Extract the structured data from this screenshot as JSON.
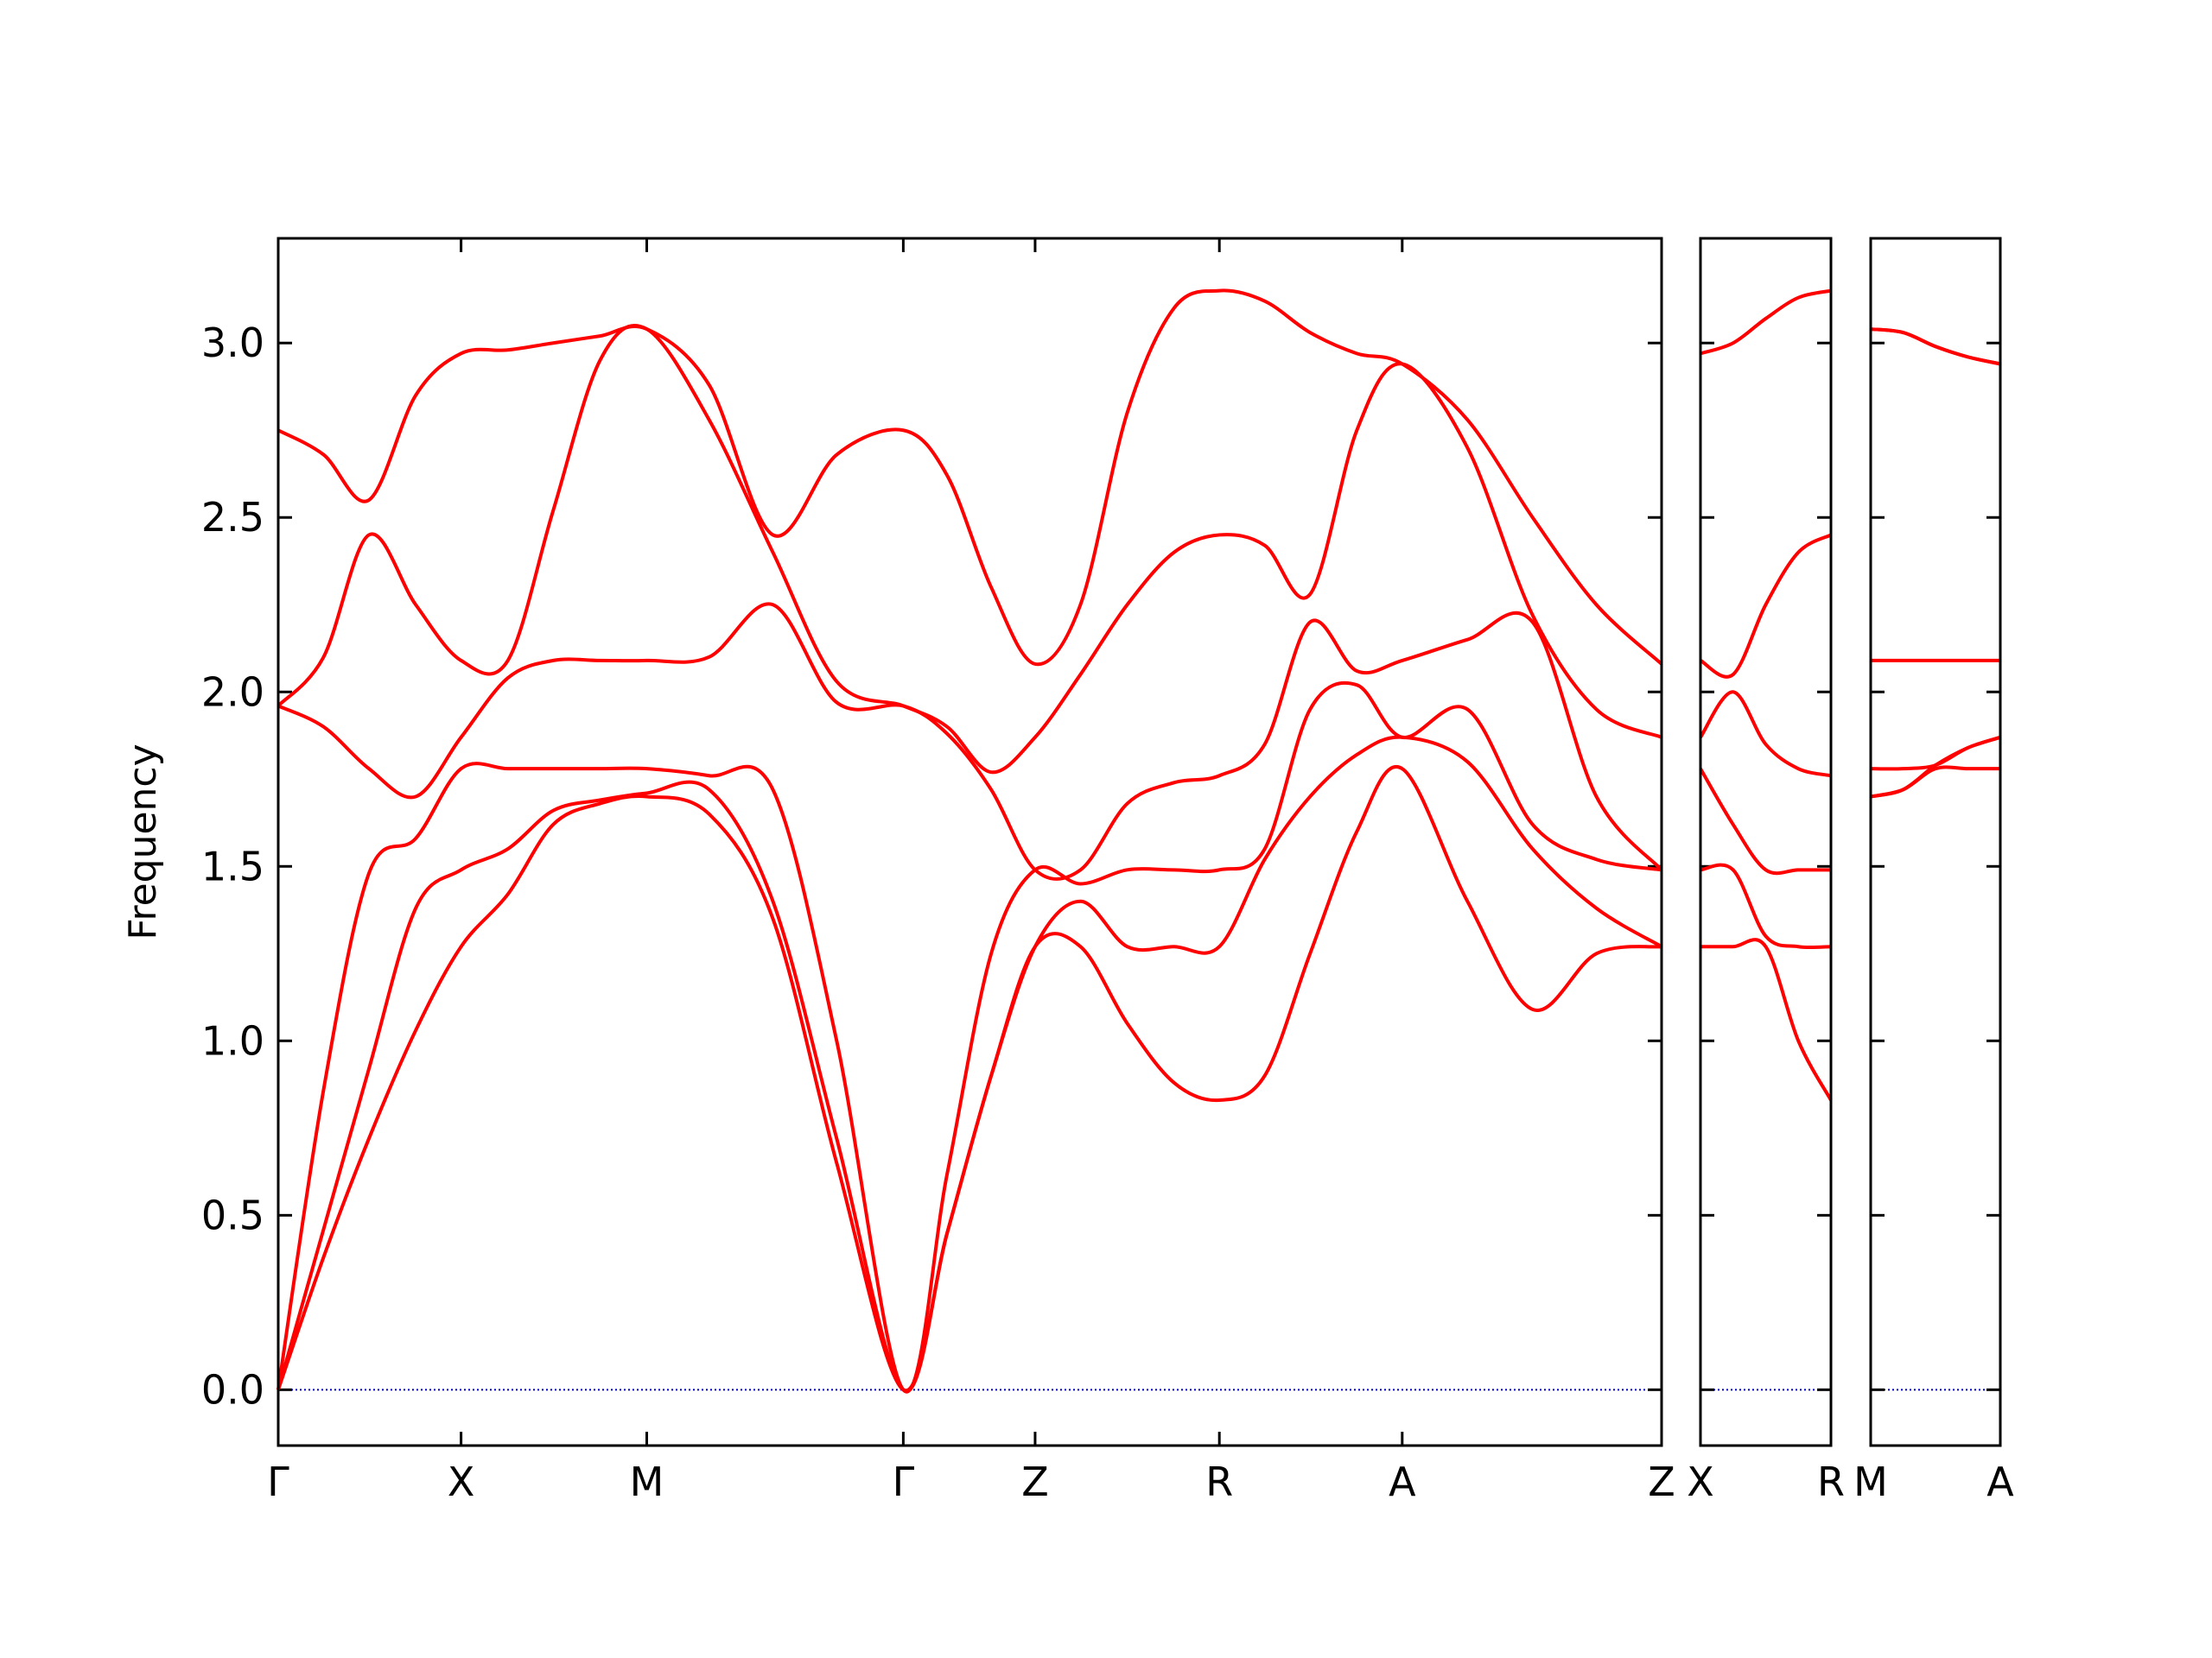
{
  "chart_data": [
    {
      "type": "line",
      "ylabel": "Frequency",
      "x": [
        0,
        0.32,
        0.64,
        0.97,
        1.29,
        1.62,
        1.94,
        2.27,
        2.6,
        3.04,
        3.49,
        3.94,
        4.41,
        4.72,
        5.03,
        5.34,
        5.66,
        5.99,
        6.32,
        6.64,
        6.96,
        7.28,
        7.61,
        7.93,
        8.39,
        8.85,
        9.3,
        9.76
      ],
      "xlim": [
        0,
        9.76
      ],
      "xticks": [
        {
          "value": 0,
          "label": "Γ"
        },
        {
          "value": 1.29,
          "label": "X"
        },
        {
          "value": 2.6,
          "label": "M"
        },
        {
          "value": 4.41,
          "label": "Γ"
        },
        {
          "value": 5.34,
          "label": "Z"
        },
        {
          "value": 6.64,
          "label": "R"
        },
        {
          "value": 7.93,
          "label": "A"
        },
        {
          "value": 9.76,
          "label": "Z"
        }
      ],
      "ylim": [
        -0.16,
        3.3
      ],
      "yticks": [
        {
          "value": 0,
          "label": "0.0"
        },
        {
          "value": 0.5,
          "label": "0.5"
        },
        {
          "value": 1,
          "label": "1.0"
        },
        {
          "value": 1.5,
          "label": "1.5"
        },
        {
          "value": 2,
          "label": "2.0"
        },
        {
          "value": 2.5,
          "label": "2.5"
        },
        {
          "value": 3,
          "label": "3.0"
        }
      ],
      "zero_line_color": "#0000cc",
      "series": [
        {
          "color": "#ff0000",
          "values": [
            0,
            0.38,
            0.72,
            1.03,
            1.27,
            1.42,
            1.62,
            1.68,
            1.7,
            1.65,
            1.35,
            0.65,
            0,
            0.45,
            0.9,
            1.27,
            1.27,
            1.05,
            0.88,
            0.83,
            0.9,
            1.25,
            1.6,
            1.78,
            1.4,
            1.09,
            1.25,
            1.27
          ]
        },
        {
          "color": "#ff0000",
          "values": [
            0,
            0.46,
            0.92,
            1.38,
            1.49,
            1.55,
            1.66,
            1.69,
            1.71,
            1.72,
            1.4,
            0.72,
            0,
            0.45,
            0.9,
            1.27,
            1.4,
            1.27,
            1.27,
            1.27,
            1.52,
            1.7,
            1.82,
            1.87,
            1.8,
            1.55,
            1.38,
            1.27
          ]
        },
        {
          "color": "#ff0000",
          "values": [
            0,
            0.86,
            1.48,
            1.58,
            1.78,
            1.78,
            1.78,
            1.78,
            1.78,
            1.76,
            1.72,
            1.0,
            0,
            0.62,
            1.25,
            1.49,
            1.45,
            1.49,
            1.49,
            1.49,
            1.55,
            1.95,
            2.02,
            1.87,
            1.95,
            1.62,
            1.52,
            1.49
          ]
        },
        {
          "color": "#ff0000",
          "values": [
            1.96,
            1.9,
            1.78,
            1.7,
            1.87,
            2.04,
            2.09,
            2.09,
            2.09,
            2.1,
            2.25,
            1.97,
            1.96,
            1.88,
            1.72,
            1.49,
            1.49,
            1.68,
            1.74,
            1.76,
            1.85,
            2.2,
            2.06,
            2.09,
            2.15,
            2.2,
            1.7,
            1.49
          ]
        },
        {
          "color": "#ff0000",
          "values": [
            1.96,
            2.1,
            2.45,
            2.25,
            2.09,
            2.09,
            2.52,
            2.95,
            3.04,
            2.78,
            2.4,
            2.03,
            1.96,
            1.9,
            1.77,
            1.87,
            2.05,
            2.25,
            2.4,
            2.45,
            2.42,
            2.28,
            2.75,
            2.94,
            2.7,
            2.22,
            1.95,
            1.87
          ]
        },
        {
          "color": "#ff0000",
          "values": [
            2.75,
            2.68,
            2.55,
            2.85,
            2.97,
            2.98,
            3.0,
            3.02,
            3.04,
            2.88,
            2.45,
            2.68,
            2.75,
            2.62,
            2.3,
            2.08,
            2.25,
            2.8,
            3.1,
            3.15,
            3.12,
            3.03,
            2.97,
            2.94,
            2.78,
            2.5,
            2.25,
            2.08
          ]
        }
      ]
    },
    {
      "type": "line",
      "x": [
        0,
        0.23,
        0.46,
        0.69,
        0.92
      ],
      "xlim": [
        0,
        0.92
      ],
      "xticks": [
        {
          "value": 0,
          "label": "X"
        },
        {
          "value": 0.92,
          "label": "R"
        }
      ],
      "ylim": [
        -0.16,
        3.3
      ],
      "yticks": [
        0,
        0.5,
        1,
        1.5,
        2,
        2.5,
        3
      ],
      "zero_line_color": "#0000cc",
      "series": [
        {
          "color": "#ff0000",
          "values": [
            1.27,
            1.27,
            1.27,
            1.0,
            0.83
          ]
        },
        {
          "color": "#ff0000",
          "values": [
            1.49,
            1.49,
            1.3,
            1.27,
            1.27
          ]
        },
        {
          "color": "#ff0000",
          "values": [
            1.78,
            1.62,
            1.49,
            1.49,
            1.49
          ]
        },
        {
          "color": "#ff0000",
          "values": [
            1.87,
            2.0,
            1.85,
            1.78,
            1.76
          ]
        },
        {
          "color": "#ff0000",
          "values": [
            2.09,
            2.05,
            2.25,
            2.4,
            2.45
          ]
        },
        {
          "color": "#ff0000",
          "values": [
            2.97,
            3.0,
            3.07,
            3.13,
            3.15
          ]
        }
      ]
    },
    {
      "type": "line",
      "x": [
        0,
        0.23,
        0.46,
        0.69,
        0.92
      ],
      "xlim": [
        0,
        0.92
      ],
      "xticks": [
        {
          "value": 0,
          "label": "M"
        },
        {
          "value": 0.92,
          "label": "A"
        }
      ],
      "ylim": [
        -0.16,
        3.3
      ],
      "yticks": [
        0,
        0.5,
        1,
        1.5,
        2,
        2.5,
        3
      ],
      "zero_line_color": "#0000cc",
      "series": [
        {
          "color": "#ff0000",
          "values": [
            1.7,
            1.72,
            1.78,
            1.78,
            1.78
          ]
        },
        {
          "color": "#ff0000",
          "values": [
            1.7,
            1.72,
            1.79,
            1.84,
            1.87
          ]
        },
        {
          "color": "#ff0000",
          "values": [
            1.78,
            1.78,
            1.79,
            1.84,
            1.87
          ]
        },
        {
          "color": "#ff0000",
          "values": [
            2.09,
            2.09,
            2.09,
            2.09,
            2.09
          ]
        },
        {
          "color": "#ff0000",
          "values": [
            3.04,
            3.03,
            2.99,
            2.96,
            2.94
          ]
        },
        {
          "color": "#ff0000",
          "values": [
            3.04,
            3.03,
            2.99,
            2.96,
            2.94
          ]
        }
      ]
    }
  ]
}
